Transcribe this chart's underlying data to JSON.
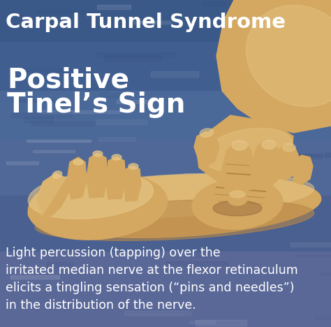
{
  "title": "Carpal Tunnel Syndrome",
  "subtitle_line1": "Positive",
  "subtitle_line2": "Tinel’s Sign",
  "description_lines": [
    "Light percussion (tapping) over the",
    "irritated median nerve at the flexor retinaculum",
    "elicits a tingling sensation (“pins and needles”)",
    "in the distribution of the nerve."
  ],
  "bg_top_color": "#3a5a8a",
  "bg_mid_color": "#4a6a9a",
  "bg_bot_color": "#6080a8",
  "text_color": "#ffffff",
  "title_fontsize": 21,
  "subtitle_fontsize": 28,
  "desc_fontsize": 12.5,
  "figwidth": 4.74,
  "figheight": 4.68,
  "dpi": 100,
  "skin_light": "#e8c88a",
  "skin_mid": "#d4a860",
  "skin_dark": "#b88848",
  "skin_shadow": "#a07030"
}
